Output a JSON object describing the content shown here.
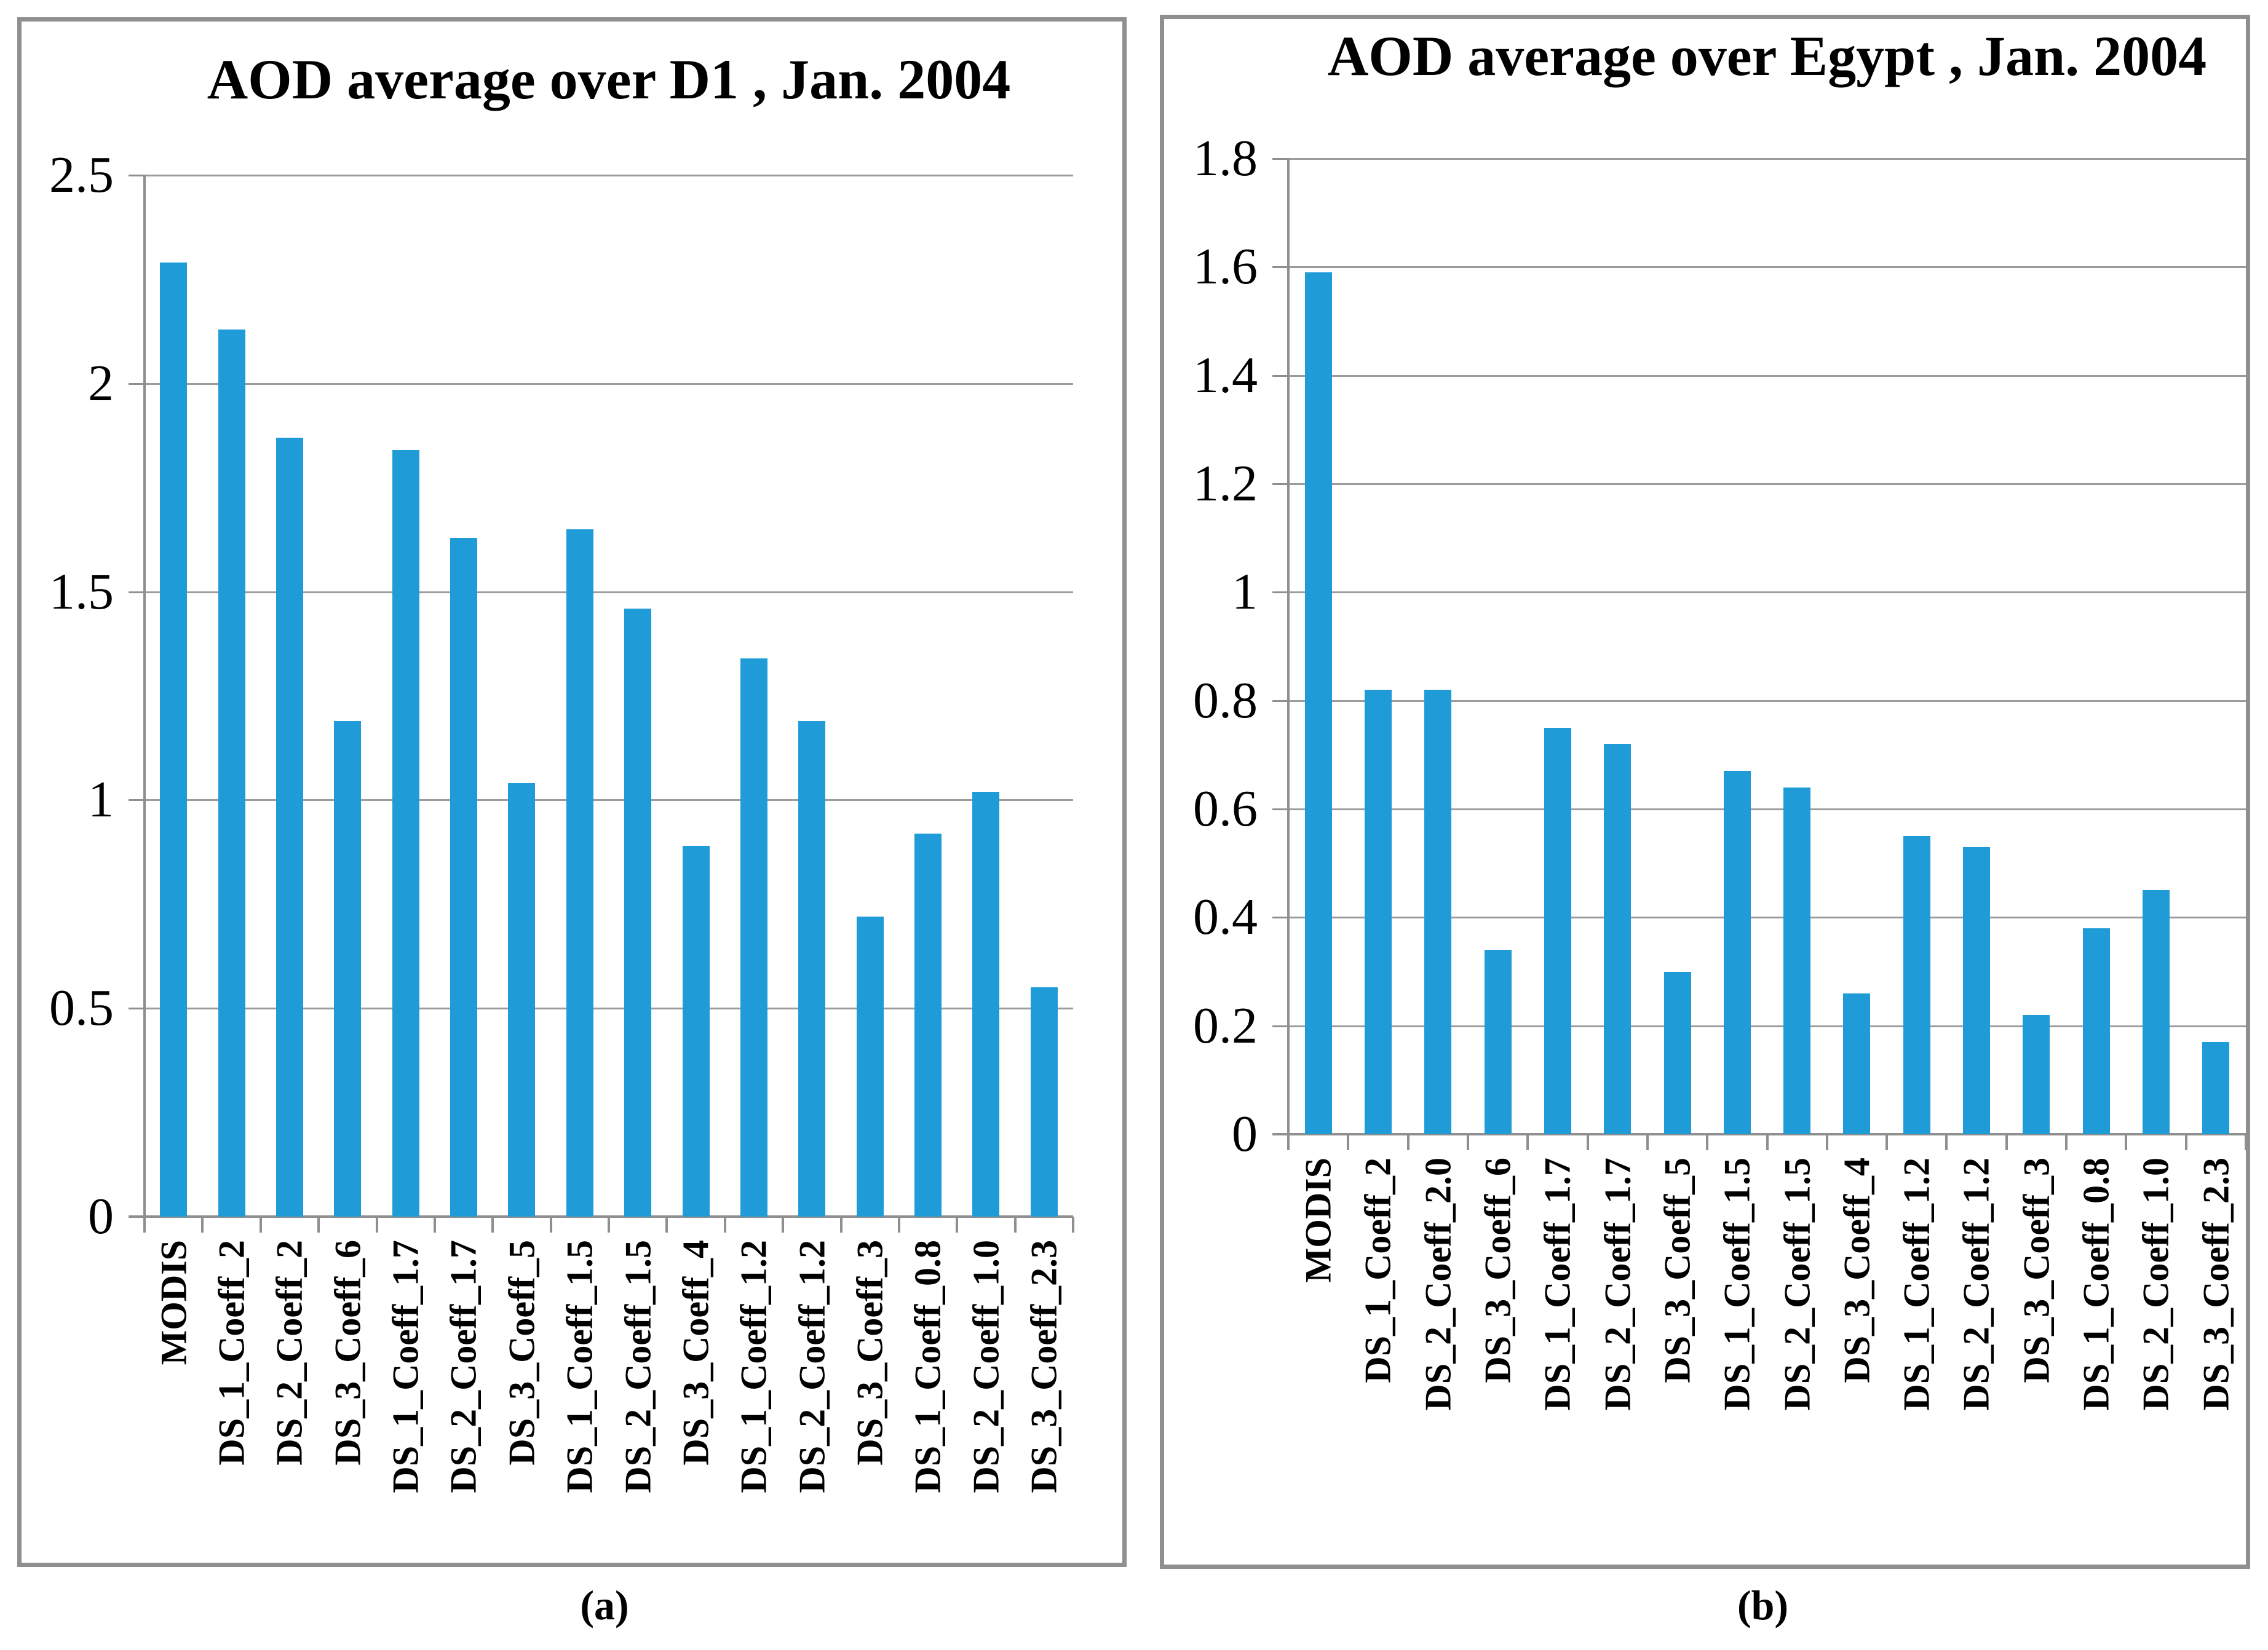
{
  "figure": {
    "caption_a": "(a)",
    "caption_b": "(b)",
    "bar_color": "#1F9CD8",
    "gridline_color": "#9c9c9c",
    "axis_color": "#8f8f8f"
  },
  "chart_data": [
    {
      "type": "bar",
      "title": "AOD average over D1 , Jan. 2004",
      "categories": [
        "MODIS",
        "DS_1_Coeff_2",
        "DS_2_Coeff_2",
        "DS_3_Coeff_6",
        "DS_1_Coeff_1.7",
        "DS_2_Coeff_1.7",
        "DS_3_Coeff_5",
        "DS_1_Coeff_1.5",
        "DS_2_Coeff_1.5",
        "DS_3_Coeff_4",
        "DS_1_Coeff_1.2",
        "DS_2_Coeff_1.2",
        "DS_3_Coeff_3",
        "DS_1_Coeff_0.8",
        "DS_2_Coeff_1.0",
        "DS_3_Coeff_2.3"
      ],
      "values": [
        2.29,
        2.13,
        1.87,
        1.19,
        1.84,
        1.63,
        1.04,
        1.65,
        1.46,
        0.89,
        1.34,
        1.19,
        0.72,
        0.92,
        1.02,
        0.55
      ],
      "ylim": [
        0,
        2.5
      ],
      "ytick_step": 0.5,
      "ytick_labels": [
        "0",
        "0.5",
        "1",
        "1.5",
        "2",
        "2.5"
      ],
      "grid": true,
      "legend": "none",
      "caption": "(a)",
      "bar_color": "#1F9CD8"
    },
    {
      "type": "bar",
      "title": "AOD average over Egypt , Jan. 2004",
      "categories": [
        "MODIS",
        "DS_1_Coeff_2",
        "DS_2_Coeff_2.0",
        "DS_3_Coeff_6",
        "DS_1_Coeff_1.7",
        "DS_2_Coeff_1.7",
        "DS_3_Coeff_5",
        "DS_1_Coeff_1.5",
        "DS_2_Coeff_1.5",
        "DS_3_Coeff_4",
        "DS_1_Coeff_1.2",
        "DS_2_Coeff_1.2",
        "DS_3_Coeff_3",
        "DS_1_Coeff_0.8",
        "DS_2_Coeff_1.0",
        "DS_3_Coeff_2.3"
      ],
      "values": [
        1.59,
        0.82,
        0.82,
        0.34,
        0.75,
        0.72,
        0.3,
        0.67,
        0.64,
        0.26,
        0.55,
        0.53,
        0.22,
        0.38,
        0.45,
        0.17
      ],
      "ylim": [
        0,
        1.8
      ],
      "ytick_step": 0.2,
      "ytick_labels": [
        "0",
        "0.2",
        "0.4",
        "0.6",
        "0.8",
        "1",
        "1.2",
        "1.4",
        "1.6",
        "1.8"
      ],
      "grid": true,
      "legend": "none",
      "caption": "(b)",
      "bar_color": "#1F9CD8"
    }
  ]
}
